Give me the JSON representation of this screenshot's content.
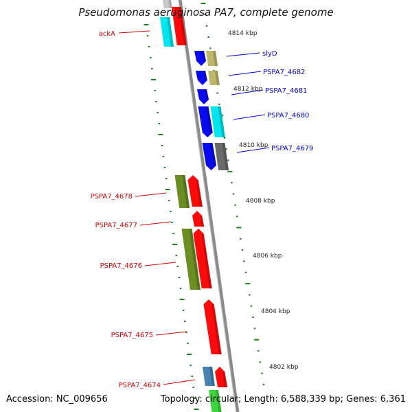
{
  "title": "Pseudomonas aeruginosa PA7, complete genome",
  "accession": "Accession: NC_009656",
  "summary": "Topology: circular; Length: 6,588,339 bp; Genes: 6,361",
  "colors": {
    "backbone": "#8a8a8a",
    "tick": "#1e7f1e",
    "label_red": "#cc0000",
    "label_blue": "#0000cc"
  },
  "kbp_labels": [
    "4814 kbp",
    "4812 kbp",
    "4810 kbp",
    "4808 kbp",
    "4806 kbp",
    "4804 kbp",
    "4802 kbp"
  ],
  "genes": [
    {
      "name": "ackA",
      "side": "left"
    },
    {
      "name": "slyD",
      "side": "right"
    },
    {
      "name": "PSPA7_4682",
      "side": "right"
    },
    {
      "name": "PSPA7_4681",
      "side": "right"
    },
    {
      "name": "PSPA7_4680",
      "side": "right"
    },
    {
      "name": "PSPA7_4679",
      "side": "right"
    },
    {
      "name": "PSPA7_4678",
      "side": "left"
    },
    {
      "name": "PSPA7_4677",
      "side": "left"
    },
    {
      "name": "PSPA7_4676",
      "side": "left"
    },
    {
      "name": "PSPA7_4675",
      "side": "left"
    },
    {
      "name": "PSPA7_4674",
      "side": "left"
    }
  ]
}
